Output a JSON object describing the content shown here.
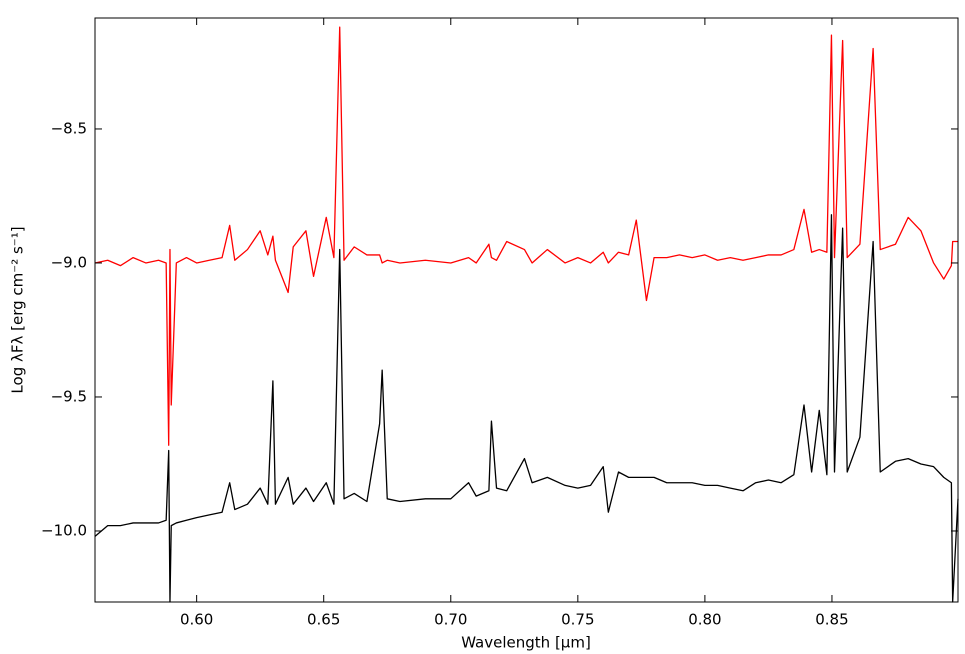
{
  "chart_data": {
    "type": "line",
    "xlabel": "Wavelength [μm]",
    "ylabel": "Log λFλ [erg cm⁻² s⁻¹]",
    "xlim": [
      0.56,
      0.8996
    ],
    "ylim": [
      -10.265,
      -8.086
    ],
    "xticks": [
      {
        "value": 0.6,
        "label": "0.60"
      },
      0.65,
      {
        "value": 0.7,
        "label": "0.70"
      },
      0.75,
      {
        "value": 0.8,
        "label": "0.80"
      },
      0.85
    ],
    "yticks": [
      {
        "value": -10.0,
        "label": "−10.0"
      },
      {
        "value": -9.5,
        "label": "−9.5"
      },
      {
        "value": -9.0,
        "label": "−9.0"
      },
      {
        "value": -8.5,
        "label": "−8.5"
      }
    ],
    "x": [
      0.56,
      0.565,
      0.57,
      0.575,
      0.58,
      0.585,
      0.588,
      0.589,
      0.5895,
      0.59,
      0.592,
      0.596,
      0.6,
      0.605,
      0.61,
      0.613,
      0.615,
      0.62,
      0.625,
      0.628,
      0.63,
      0.631,
      0.636,
      0.638,
      0.643,
      0.646,
      0.651,
      0.654,
      0.6563,
      0.658,
      0.662,
      0.667,
      0.672,
      0.673,
      0.675,
      0.68,
      0.69,
      0.7,
      0.707,
      0.71,
      0.715,
      0.716,
      0.718,
      0.722,
      0.729,
      0.732,
      0.738,
      0.745,
      0.75,
      0.755,
      0.76,
      0.762,
      0.766,
      0.77,
      0.773,
      0.777,
      0.78,
      0.785,
      0.79,
      0.795,
      0.8,
      0.805,
      0.81,
      0.815,
      0.82,
      0.825,
      0.83,
      0.835,
      0.839,
      0.842,
      0.845,
      0.848,
      0.8498,
      0.851,
      0.8542,
      0.856,
      0.861,
      0.8662,
      0.869,
      0.875,
      0.88,
      0.885,
      0.89,
      0.894,
      0.897,
      0.8975,
      0.8996
    ],
    "series": [
      {
        "color": "#ff0000",
        "values": [
          -9.0,
          -8.99,
          -9.01,
          -8.98,
          -9.0,
          -8.99,
          -9.0,
          -9.68,
          -8.95,
          -9.53,
          -9.0,
          -8.98,
          -9.0,
          -8.99,
          -8.98,
          -8.86,
          -8.99,
          -8.95,
          -8.88,
          -8.97,
          -8.9,
          -8.99,
          -9.11,
          -8.94,
          -8.88,
          -9.05,
          -8.83,
          -8.98,
          -8.12,
          -8.99,
          -8.94,
          -8.97,
          -8.97,
          -9.0,
          -8.99,
          -9.0,
          -8.99,
          -9.0,
          -8.98,
          -9.0,
          -8.93,
          -8.98,
          -8.99,
          -8.92,
          -8.95,
          -9.0,
          -8.95,
          -9.0,
          -8.98,
          -9.0,
          -8.96,
          -9.0,
          -8.96,
          -8.97,
          -8.84,
          -9.14,
          -8.98,
          -8.98,
          -8.97,
          -8.98,
          -8.97,
          -8.99,
          -8.98,
          -8.99,
          -8.98,
          -8.97,
          -8.97,
          -8.95,
          -8.8,
          -8.96,
          -8.95,
          -8.96,
          -8.15,
          -8.98,
          -8.17,
          -8.98,
          -8.93,
          -8.2,
          -8.95,
          -8.93,
          -8.83,
          -8.88,
          -9.0,
          -9.06,
          -9.01,
          -8.92,
          -8.92
        ]
      },
      {
        "color": "#000000",
        "values": [
          -10.02,
          -9.98,
          -9.98,
          -9.97,
          -9.97,
          -9.97,
          -9.96,
          -9.7,
          -10.265,
          -9.98,
          -9.97,
          -9.96,
          -9.95,
          -9.94,
          -9.93,
          -9.82,
          -9.92,
          -9.9,
          -9.84,
          -9.9,
          -9.44,
          -9.9,
          -9.8,
          -9.9,
          -9.84,
          -9.89,
          -9.82,
          -9.9,
          -8.95,
          -9.88,
          -9.86,
          -9.89,
          -9.6,
          -9.4,
          -9.88,
          -9.89,
          -9.88,
          -9.88,
          -9.82,
          -9.87,
          -9.85,
          -9.59,
          -9.84,
          -9.85,
          -9.73,
          -9.82,
          -9.8,
          -9.83,
          -9.84,
          -9.83,
          -9.76,
          -9.93,
          -9.78,
          -9.8,
          -9.8,
          -9.8,
          -9.8,
          -9.82,
          -9.82,
          -9.82,
          -9.83,
          -9.83,
          -9.84,
          -9.85,
          -9.82,
          -9.81,
          -9.82,
          -9.79,
          -9.53,
          -9.78,
          -9.55,
          -9.79,
          -8.82,
          -9.78,
          -8.87,
          -9.78,
          -9.65,
          -8.92,
          -9.78,
          -9.74,
          -9.73,
          -9.75,
          -9.76,
          -9.8,
          -9.82,
          -10.265,
          -9.88
        ]
      }
    ]
  }
}
